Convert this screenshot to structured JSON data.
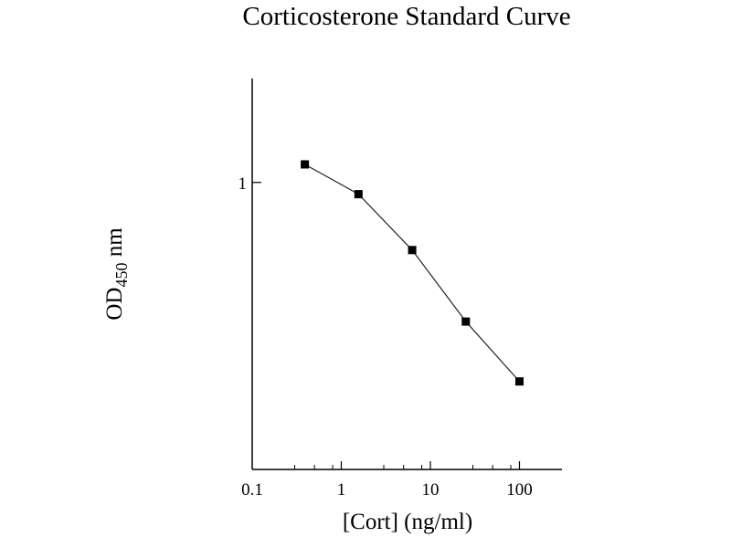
{
  "chart_data": {
    "type": "line",
    "title": "Corticosterone Standard Curve",
    "xlabel": "[Cort] (ng/ml)",
    "ylabel": {
      "main": "OD",
      "subscript": "450",
      "unit": " nm"
    },
    "x_scale": "log",
    "y_scale": "log",
    "xlim": [
      0.1,
      300
    ],
    "ylim": [
      0.22,
      1.73
    ],
    "x_ticks": [
      "0.1",
      "1",
      "10",
      "100"
    ],
    "x_minor_ticks": [
      0.3,
      0.5,
      0.8,
      3,
      5,
      8,
      30,
      50,
      80
    ],
    "y_ticks": [
      "1"
    ],
    "grid": false,
    "marker": "square",
    "series": [
      {
        "x": [
          0.39,
          1.56,
          6.25,
          25,
          100
        ],
        "y": [
          1.1,
          0.94,
          0.7,
          0.48,
          0.35
        ]
      }
    ],
    "color": "#000000"
  }
}
